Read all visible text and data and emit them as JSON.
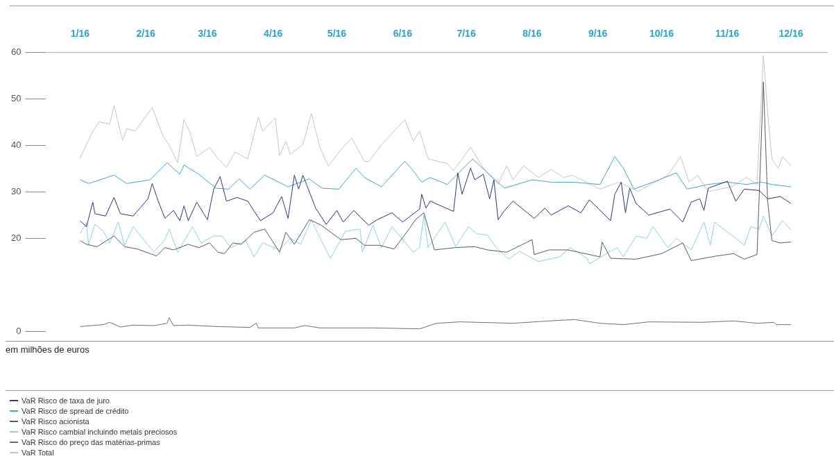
{
  "chart_data": {
    "type": "line",
    "marker": "none",
    "legend": "bottom",
    "annotations": [
      "em milhões de euros"
    ],
    "xlim": [
      "2015-12-16",
      "2016-12-18"
    ],
    "xticks": [
      {
        "value": "2016-01-01",
        "label": "1/16"
      },
      {
        "value": "2016-02-01",
        "label": "2/16"
      },
      {
        "value": "2016-03-01",
        "label": "3/16"
      },
      {
        "value": "2016-04-01",
        "label": "4/16"
      },
      {
        "value": "2016-05-01",
        "label": "5/16"
      },
      {
        "value": "2016-06-01",
        "label": "6/16"
      },
      {
        "value": "2016-07-01",
        "label": "7/16"
      },
      {
        "value": "2016-08-01",
        "label": "8/16"
      },
      {
        "value": "2016-09-01",
        "label": "9/16"
      },
      {
        "value": "2016-10-01",
        "label": "10/16"
      },
      {
        "value": "2016-11-01",
        "label": "11/16"
      },
      {
        "value": "2016-12-01",
        "label": "12/16"
      }
    ],
    "ylim": [
      0,
      60
    ],
    "yticks": [
      0,
      20,
      30,
      40,
      50,
      60
    ],
    "series": [
      {
        "name": "VaR Risco de taxa de juro",
        "color": "#2b3580",
        "x": [
          "2016-01-01",
          "2016-01-04",
          "2016-01-07",
          "2016-01-08",
          "2016-01-13",
          "2016-01-17",
          "2016-01-20",
          "2016-01-26",
          "2016-02-02",
          "2016-02-04",
          "2016-02-07",
          "2016-02-10",
          "2016-02-14",
          "2016-02-17",
          "2016-02-19",
          "2016-02-21",
          "2016-02-25",
          "2016-03-01",
          "2016-03-04",
          "2016-03-07",
          "2016-03-10",
          "2016-03-15",
          "2016-03-20",
          "2016-03-26",
          "2016-04-01",
          "2016-04-03",
          "2016-04-05",
          "2016-04-08",
          "2016-04-11",
          "2016-04-13",
          "2016-04-15",
          "2016-04-21",
          "2016-04-26",
          "2016-05-01",
          "2016-05-04",
          "2016-05-09",
          "2016-05-16",
          "2016-05-20",
          "2016-05-27",
          "2016-06-01",
          "2016-06-09",
          "2016-06-10",
          "2016-06-12",
          "2016-06-14",
          "2016-06-25",
          "2016-06-27",
          "2016-06-29",
          "2016-07-03",
          "2016-07-05",
          "2016-07-09",
          "2016-07-12",
          "2016-07-14",
          "2016-07-16",
          "2016-07-19",
          "2016-07-23",
          "2016-08-02",
          "2016-08-07",
          "2016-08-10",
          "2016-08-18",
          "2016-08-24",
          "2016-08-28",
          "2016-09-07",
          "2016-09-09",
          "2016-09-12",
          "2016-09-14",
          "2016-09-16",
          "2016-09-19",
          "2016-09-25",
          "2016-10-05",
          "2016-10-11",
          "2016-10-15",
          "2016-10-19",
          "2016-10-21",
          "2016-10-23",
          "2016-11-01",
          "2016-11-05",
          "2016-11-09",
          "2016-11-16",
          "2016-11-20",
          "2016-11-26",
          "2016-12-01"
        ],
        "values": [
          23.8,
          22.5,
          27.8,
          25.3,
          24.8,
          28.8,
          25.3,
          24.8,
          28.5,
          31.8,
          27.8,
          24.3,
          26.0,
          23.8,
          27.0,
          23.8,
          27.8,
          24.0,
          30.6,
          33.3,
          28.0,
          28.8,
          28.0,
          23.8,
          25.5,
          27.3,
          29.0,
          24.3,
          33.6,
          30.6,
          33.6,
          26.5,
          23.0,
          26.0,
          23.5,
          26.0,
          22.8,
          24.0,
          25.5,
          23.5,
          26.3,
          29.5,
          26.5,
          28.0,
          25.8,
          34.1,
          29.5,
          35.1,
          32.6,
          33.8,
          28.5,
          32.6,
          24.0,
          26.0,
          28.0,
          24.3,
          26.5,
          25.0,
          27.0,
          25.5,
          28.3,
          23.8,
          29.5,
          32.1,
          25.5,
          30.8,
          27.5,
          25.0,
          26.3,
          23.5,
          27.8,
          28.5,
          26.0,
          30.8,
          32.3,
          28.0,
          30.6,
          30.3,
          28.5,
          29.0,
          27.5
        ]
      },
      {
        "name": "VaR Risco de spread de crédito",
        "color": "#3ea6d2",
        "x": [
          "2016-01-01",
          "2016-01-05",
          "2016-01-17",
          "2016-01-23",
          "2016-02-03",
          "2016-02-11",
          "2016-02-17",
          "2016-02-19",
          "2016-02-26",
          "2016-03-05",
          "2016-03-11",
          "2016-03-16",
          "2016-03-21",
          "2016-03-28",
          "2016-04-08",
          "2016-04-18",
          "2016-04-24",
          "2016-05-02",
          "2016-05-10",
          "2016-05-14",
          "2016-05-22",
          "2016-06-02",
          "2016-06-05",
          "2016-06-10",
          "2016-06-14",
          "2016-06-22",
          "2016-07-04",
          "2016-07-11",
          "2016-07-19",
          "2016-08-01",
          "2016-08-10",
          "2016-08-20",
          "2016-09-02",
          "2016-09-09",
          "2016-09-13",
          "2016-09-18",
          "2016-09-27",
          "2016-10-08",
          "2016-10-13",
          "2016-10-23",
          "2016-11-01",
          "2016-11-10",
          "2016-11-17",
          "2016-11-22",
          "2016-12-01"
        ],
        "values": [
          32.6,
          31.8,
          33.6,
          31.8,
          32.6,
          36.3,
          33.8,
          35.8,
          33.8,
          30.8,
          30.6,
          32.8,
          30.6,
          33.6,
          31.1,
          32.8,
          30.8,
          30.6,
          35.1,
          33.1,
          31.1,
          36.6,
          35.1,
          32.1,
          33.1,
          31.6,
          37.1,
          34.1,
          30.8,
          32.6,
          32.1,
          32.1,
          31.6,
          37.6,
          35.1,
          30.6,
          32.1,
          34.1,
          30.6,
          31.6,
          32.1,
          31.6,
          32.1,
          31.6,
          31.1
        ]
      },
      {
        "name": "VaR Risco acionista",
        "color": "#555a60",
        "x": [
          "2016-01-01",
          "2016-01-04",
          "2016-01-09",
          "2016-01-17",
          "2016-01-22",
          "2016-01-28",
          "2016-02-06",
          "2016-02-10",
          "2016-02-14",
          "2016-02-21",
          "2016-02-26",
          "2016-03-02",
          "2016-03-06",
          "2016-03-09",
          "2016-03-13",
          "2016-03-17",
          "2016-03-23",
          "2016-03-28",
          "2016-04-04",
          "2016-04-07",
          "2016-04-11",
          "2016-04-18",
          "2016-04-23",
          "2016-05-03",
          "2016-05-10",
          "2016-05-14",
          "2016-05-21",
          "2016-05-28",
          "2016-06-04",
          "2016-06-07",
          "2016-06-11",
          "2016-06-16",
          "2016-06-26",
          "2016-07-05",
          "2016-07-11",
          "2016-07-20",
          "2016-08-01",
          "2016-08-02",
          "2016-08-09",
          "2016-08-18",
          "2016-09-02",
          "2016-09-03",
          "2016-09-07",
          "2016-09-19",
          "2016-10-01",
          "2016-10-11",
          "2016-10-15",
          "2016-10-27",
          "2016-11-04",
          "2016-11-09",
          "2016-11-15",
          "2016-11-18",
          "2016-11-20",
          "2016-11-22",
          "2016-11-26",
          "2016-12-01"
        ],
        "values": [
          19.5,
          18.7,
          18.2,
          20.5,
          18.2,
          17.7,
          16.2,
          18.0,
          17.5,
          18.7,
          18.0,
          19.0,
          17.0,
          16.7,
          19.0,
          18.7,
          21.3,
          22.0,
          17.0,
          21.3,
          18.7,
          24.0,
          23.0,
          19.7,
          20.0,
          18.5,
          18.5,
          17.7,
          22.0,
          24.0,
          25.5,
          17.5,
          18.0,
          18.2,
          17.5,
          17.0,
          19.7,
          16.5,
          17.5,
          17.5,
          16.0,
          19.2,
          15.7,
          15.5,
          16.7,
          19.0,
          15.2,
          16.2,
          16.7,
          15.5,
          16.5,
          53.7,
          28.0,
          19.5,
          19.0,
          19.2
        ]
      },
      {
        "name": "VaR Risco cambial incluindo metais preciosos",
        "color": "#8dcfe8",
        "x": [
          "2016-01-01",
          "2016-01-04",
          "2016-01-05",
          "2016-01-08",
          "2016-01-12",
          "2016-01-15",
          "2016-01-19",
          "2016-01-22",
          "2016-01-26",
          "2016-02-03",
          "2016-02-05",
          "2016-02-10",
          "2016-02-12",
          "2016-02-16",
          "2016-02-23",
          "2016-02-27",
          "2016-03-04",
          "2016-03-08",
          "2016-03-12",
          "2016-03-19",
          "2016-03-23",
          "2016-03-27",
          "2016-04-04",
          "2016-04-09",
          "2016-04-14",
          "2016-04-19",
          "2016-04-24",
          "2016-04-28",
          "2016-05-05",
          "2016-05-12",
          "2016-05-13",
          "2016-05-18",
          "2016-05-22",
          "2016-05-27",
          "2016-06-06",
          "2016-06-09",
          "2016-06-11",
          "2016-06-13",
          "2016-06-21",
          "2016-06-26",
          "2016-07-02",
          "2016-07-06",
          "2016-07-11",
          "2016-07-15",
          "2016-07-21",
          "2016-07-26",
          "2016-08-04",
          "2016-08-14",
          "2016-08-19",
          "2016-08-27",
          "2016-08-28",
          "2016-09-10",
          "2016-09-13",
          "2016-09-19",
          "2016-09-24",
          "2016-09-27",
          "2016-10-04",
          "2016-10-08",
          "2016-10-15",
          "2016-10-21",
          "2016-10-24",
          "2016-10-26",
          "2016-11-05",
          "2016-11-09",
          "2016-11-12",
          "2016-11-16",
          "2016-11-18",
          "2016-11-22",
          "2016-11-27",
          "2016-12-01"
        ],
        "values": [
          21.0,
          23.3,
          18.7,
          23.0,
          21.5,
          19.0,
          23.5,
          18.5,
          22.5,
          18.0,
          17.2,
          19.7,
          22.0,
          17.0,
          22.5,
          19.0,
          20.5,
          20.5,
          18.0,
          19.5,
          16.0,
          19.0,
          17.5,
          20.0,
          18.7,
          24.0,
          19.2,
          15.7,
          21.5,
          22.0,
          17.0,
          22.8,
          18.0,
          22.5,
          17.0,
          18.0,
          25.0,
          18.0,
          23.5,
          18.2,
          22.5,
          21.0,
          20.7,
          18.0,
          15.5,
          17.2,
          15.0,
          16.0,
          18.0,
          15.7,
          14.5,
          18.0,
          16.0,
          20.5,
          20.0,
          22.5,
          18.0,
          20.0,
          17.5,
          23.5,
          18.5,
          23.5,
          20.0,
          18.5,
          22.5,
          22.0,
          24.8,
          20.5,
          23.8,
          21.8
        ]
      },
      {
        "name": "VaR Risco do preço das matérias-primas",
        "color": "#6e6e6e",
        "x": [
          "2016-01-01",
          "2016-01-12",
          "2016-01-15",
          "2016-01-20",
          "2016-01-26",
          "2016-02-05",
          "2016-02-11",
          "2016-02-12",
          "2016-02-14",
          "2016-02-21",
          "2016-03-05",
          "2016-03-21",
          "2016-03-24",
          "2016-03-25",
          "2016-04-11",
          "2016-04-16",
          "2016-04-23",
          "2016-05-06",
          "2016-05-18",
          "2016-06-09",
          "2016-06-17",
          "2016-06-28",
          "2016-07-23",
          "2016-08-09",
          "2016-08-21",
          "2016-09-02",
          "2016-09-13",
          "2016-09-25",
          "2016-10-20",
          "2016-11-04",
          "2016-11-15",
          "2016-11-23",
          "2016-11-24",
          "2016-12-01"
        ],
        "values": [
          1.0,
          1.4,
          1.9,
          0.9,
          1.3,
          1.2,
          1.7,
          2.9,
          1.2,
          1.3,
          1.0,
          0.8,
          1.7,
          0.7,
          0.7,
          1.2,
          0.7,
          0.7,
          0.7,
          0.5,
          1.7,
          2.0,
          1.7,
          2.2,
          2.5,
          1.7,
          1.4,
          2.0,
          1.9,
          2.2,
          1.7,
          1.9,
          1.4,
          1.4
        ]
      },
      {
        "name": "VaR Total",
        "color": "#c4c4c4",
        "x": [
          "2016-01-01",
          "2016-01-07",
          "2016-01-10",
          "2016-01-15",
          "2016-01-17",
          "2016-01-21",
          "2016-01-23",
          "2016-01-27",
          "2016-02-04",
          "2016-02-09",
          "2016-02-12",
          "2016-02-16",
          "2016-02-19",
          "2016-02-22",
          "2016-02-25",
          "2016-03-02",
          "2016-03-06",
          "2016-03-10",
          "2016-03-14",
          "2016-03-20",
          "2016-03-25",
          "2016-03-27",
          "2016-04-02",
          "2016-04-04",
          "2016-04-07",
          "2016-04-09",
          "2016-04-15",
          "2016-04-19",
          "2016-04-23",
          "2016-04-27",
          "2016-05-03",
          "2016-05-08",
          "2016-05-14",
          "2016-05-16",
          "2016-05-22",
          "2016-06-02",
          "2016-06-06",
          "2016-06-09",
          "2016-06-13",
          "2016-06-22",
          "2016-06-25",
          "2016-07-03",
          "2016-07-09",
          "2016-07-16",
          "2016-07-20",
          "2016-07-23",
          "2016-07-28",
          "2016-08-04",
          "2016-08-10",
          "2016-08-16",
          "2016-08-20",
          "2016-09-02",
          "2016-09-11",
          "2016-09-20",
          "2016-10-04",
          "2016-10-10",
          "2016-10-14",
          "2016-10-18",
          "2016-10-23",
          "2016-11-03",
          "2016-11-10",
          "2016-11-15",
          "2016-11-18",
          "2016-11-20",
          "2016-11-22",
          "2016-11-25",
          "2016-11-27",
          "2016-12-01"
        ],
        "values": [
          37.3,
          43.1,
          45.1,
          44.6,
          48.6,
          41.1,
          43.6,
          43.1,
          48.2,
          42.1,
          40.1,
          36.3,
          45.6,
          42.6,
          37.6,
          39.6,
          37.1,
          35.3,
          38.6,
          37.1,
          46.1,
          43.1,
          45.9,
          37.8,
          40.9,
          38.1,
          40.2,
          46.9,
          39.6,
          35.6,
          39.1,
          41.6,
          36.6,
          36.5,
          40.1,
          45.6,
          40.9,
          43.1,
          37.1,
          36.1,
          34.6,
          39.6,
          35.1,
          31.6,
          35.6,
          32.6,
          35.6,
          33.1,
          34.8,
          33.1,
          33.6,
          30.6,
          32.1,
          30.1,
          33.6,
          37.6,
          32.1,
          33.6,
          30.1,
          31.1,
          33.1,
          31.6,
          59.4,
          47.1,
          37.1,
          35.1,
          37.6,
          35.6
        ]
      }
    ]
  }
}
